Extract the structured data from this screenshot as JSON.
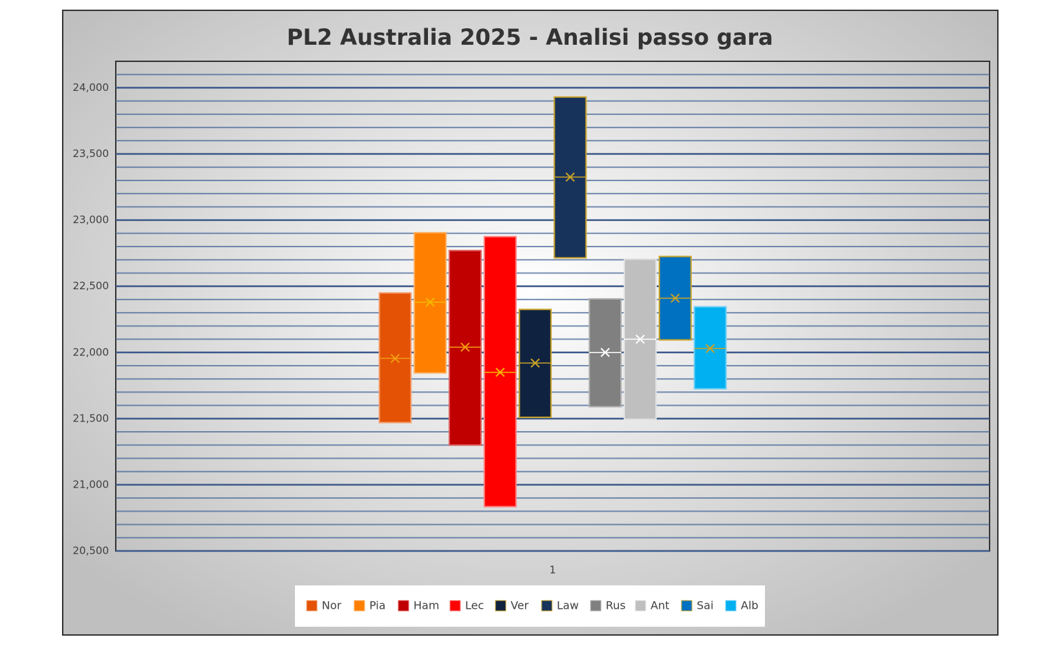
{
  "chart_data": {
    "type": "box",
    "title": "PL2 Australia 2025 - Analisi passo gara",
    "categories": [
      "1"
    ],
    "ylim": [
      20500,
      24200
    ],
    "yticks": [
      {
        "value": 20500,
        "label": "20,500"
      },
      {
        "value": 21000,
        "label": "21,000"
      },
      {
        "value": 21500,
        "label": "21,500"
      },
      {
        "value": 22000,
        "label": "22,000"
      },
      {
        "value": 22500,
        "label": "22,500"
      },
      {
        "value": 23000,
        "label": "23,000"
      },
      {
        "value": 23500,
        "label": "23,500"
      },
      {
        "value": 24000,
        "label": "24,000"
      }
    ],
    "grid": true,
    "legend": "bottom",
    "series": [
      {
        "name": "Nor",
        "color": "#e35205",
        "edge": "#f4a070",
        "accent": "#f39c12",
        "low": 21470,
        "high": 22450,
        "median": 21955,
        "mean": 21955
      },
      {
        "name": "Pia",
        "color": "#ff7f00",
        "edge": "#ffb060",
        "accent": "#f5b700",
        "low": 21845,
        "high": 22905,
        "median": 22380,
        "mean": 22380
      },
      {
        "name": "Ham",
        "color": "#c00000",
        "edge": "#e06060",
        "accent": "#f39c12",
        "low": 21300,
        "high": 22770,
        "median": 22040,
        "mean": 22040
      },
      {
        "name": "Lec",
        "color": "#ff0000",
        "edge": "#ff8080",
        "accent": "#f5b700",
        "low": 20835,
        "high": 22875,
        "median": 21850,
        "mean": 21850
      },
      {
        "name": "Ver",
        "color": "#0f2340",
        "edge": "#c9a227",
        "accent": "#c9a227",
        "low": 21510,
        "high": 22325,
        "median": 21920,
        "mean": 21920
      },
      {
        "name": "Law",
        "color": "#17335c",
        "edge": "#c9a227",
        "accent": "#c9a227",
        "low": 22715,
        "high": 23930,
        "median": 23325,
        "mean": 23325
      },
      {
        "name": "Rus",
        "color": "#808080",
        "edge": "#b0b0b0",
        "accent": "#ffffff",
        "low": 21590,
        "high": 22405,
        "median": 22000,
        "mean": 22000
      },
      {
        "name": "Ant",
        "color": "#bfbfbf",
        "edge": "#e0e0e0",
        "accent": "#ffffff",
        "low": 21495,
        "high": 22705,
        "median": 22100,
        "mean": 22100
      },
      {
        "name": "Sai",
        "color": "#0070c0",
        "edge": "#c9a227",
        "accent": "#c9a227",
        "low": 22095,
        "high": 22725,
        "median": 22410,
        "mean": 22410
      },
      {
        "name": "Alb",
        "color": "#00b0f0",
        "edge": "#70d0f8",
        "accent": "#c9a227",
        "low": 21725,
        "high": 22345,
        "median": 22030,
        "mean": 22030
      }
    ]
  }
}
